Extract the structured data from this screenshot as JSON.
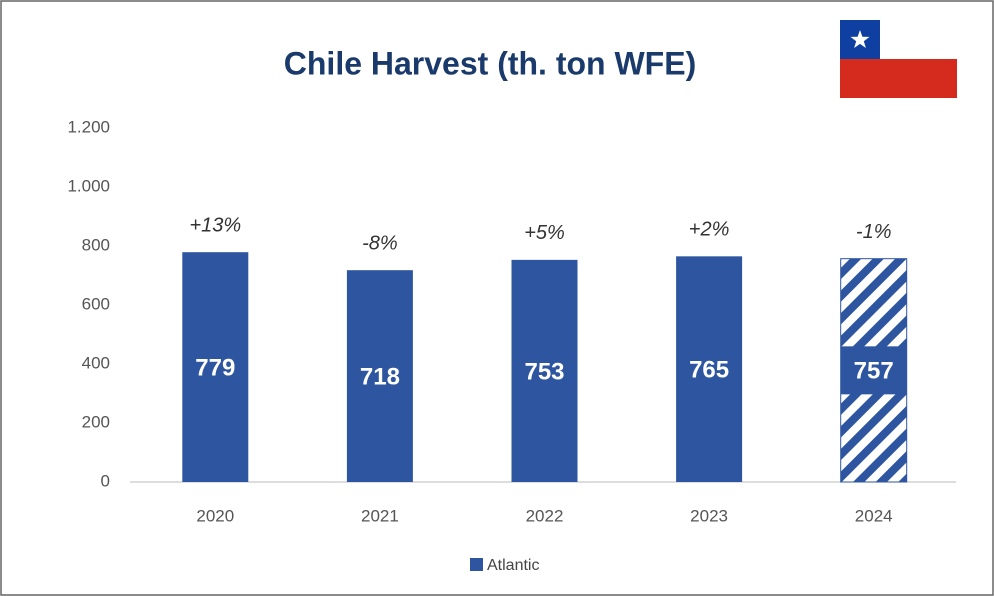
{
  "chart_data": {
    "type": "bar",
    "title": "Chile Harvest (th. ton WFE)",
    "categories": [
      "2020",
      "2021",
      "2022",
      "2023",
      "2024"
    ],
    "values": [
      779,
      718,
      753,
      765,
      757
    ],
    "annotations": [
      "+13%",
      "-8%",
      "+5%",
      "+2%",
      "-1%"
    ],
    "bar_styles": [
      "solid",
      "solid",
      "solid",
      "solid",
      "hatched"
    ],
    "series_name": "Atlantic",
    "color": "#2e55a0",
    "ylim": [
      0,
      1200
    ],
    "yticks": [
      0,
      200,
      400,
      600,
      800,
      {
        "value": 1000,
        "label": "1.000"
      },
      {
        "value": 1200,
        "label": "1.200"
      }
    ],
    "grid": false
  }
}
